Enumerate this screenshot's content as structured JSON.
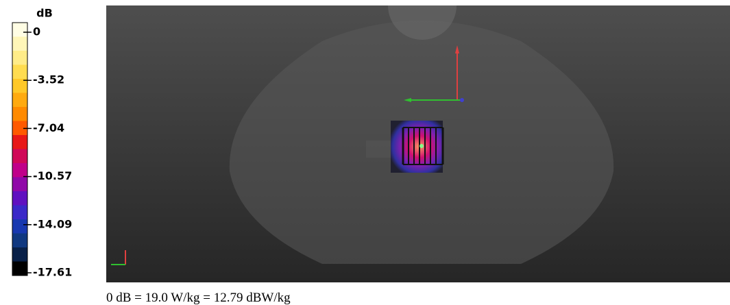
{
  "colorbar": {
    "unit": "dB",
    "ticks": [
      "0",
      "-3.52",
      "-7.04",
      "-10.57",
      "-14.09",
      "-17.61"
    ]
  },
  "footer": "0 dB = 19.0 W/kg = 12.79 dBW/kg"
}
